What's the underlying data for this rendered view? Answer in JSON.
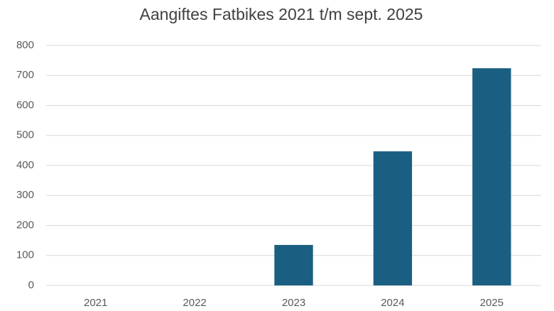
{
  "chart_data": {
    "type": "bar",
    "title": "Aangiftes Fatbikes 2021 t/m sept. 2025",
    "categories": [
      "2021",
      "2022",
      "2023",
      "2024",
      "2025"
    ],
    "values": [
      0,
      0,
      135,
      447,
      724
    ],
    "color": "#1a5f82",
    "ylim": [
      0,
      800
    ],
    "yticks": [
      0,
      100,
      200,
      300,
      400,
      500,
      600,
      700,
      800
    ],
    "grid": true
  }
}
